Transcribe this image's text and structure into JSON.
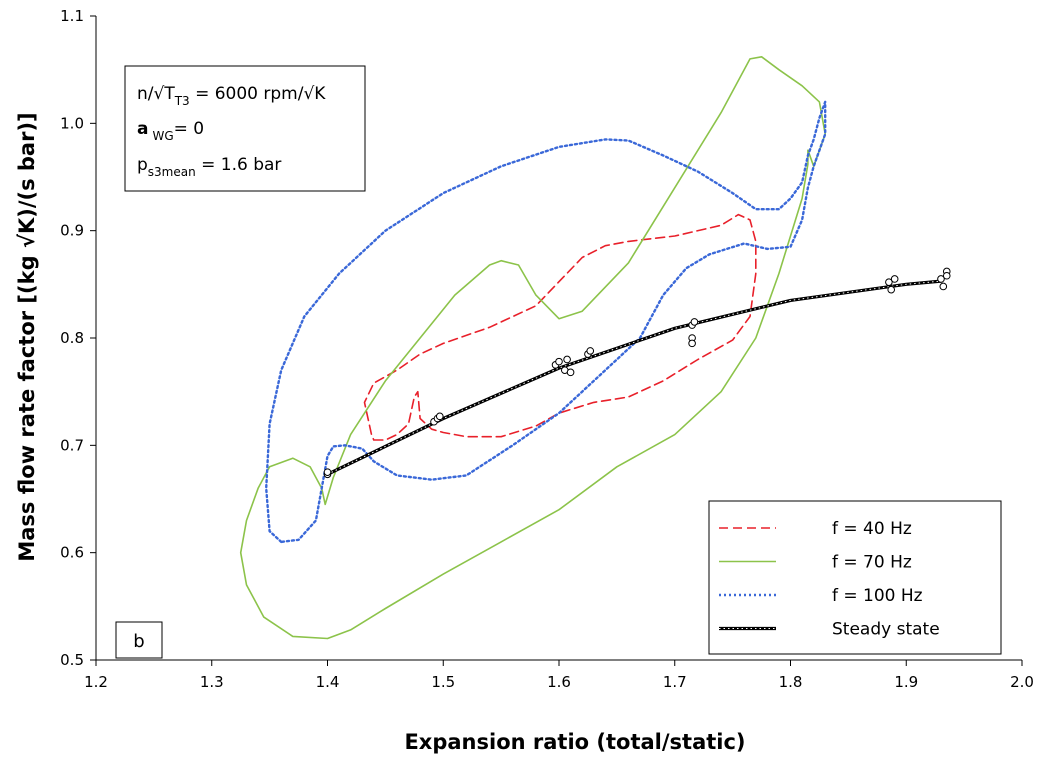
{
  "chart_data": {
    "type": "line",
    "title": "",
    "xlabel": "Expansion ratio (total/static)",
    "ylabel": "Mass flow rate factor [(kg √K)/(s bar)]",
    "xlim": [
      1.2,
      2.0
    ],
    "ylim": [
      0.5,
      1.1
    ],
    "xticks": [
      "1.2",
      "1.3",
      "1.4",
      "1.5",
      "1.6",
      "1.7",
      "1.8",
      "1.9",
      "2.0"
    ],
    "yticks": [
      "0.5",
      "0.6",
      "0.7",
      "0.8",
      "0.9",
      "1.0",
      "1.1"
    ],
    "grid": false,
    "legend_position": "bottom-right",
    "panel_label": "b",
    "annotation": {
      "line1": {
        "pre": "n/√T",
        "sub": "T3",
        "post": " = 6000 rpm/√K"
      },
      "line2": {
        "pre": "a",
        "sub": "WG",
        "post": "= 0"
      },
      "line3": {
        "pre": "p",
        "sub": "s3mean",
        "post": " = 1.6 bar"
      }
    },
    "series": [
      {
        "name": "f = 40 Hz",
        "color": "#e8202a",
        "style": "dashed",
        "points": [
          [
            1.44,
            0.705
          ],
          [
            1.45,
            0.705
          ],
          [
            1.46,
            0.71
          ],
          [
            1.47,
            0.72
          ],
          [
            1.475,
            0.745
          ],
          [
            1.478,
            0.75
          ],
          [
            1.48,
            0.725
          ],
          [
            1.49,
            0.715
          ],
          [
            1.5,
            0.712
          ],
          [
            1.52,
            0.708
          ],
          [
            1.55,
            0.708
          ],
          [
            1.58,
            0.718
          ],
          [
            1.6,
            0.73
          ],
          [
            1.63,
            0.74
          ],
          [
            1.66,
            0.745
          ],
          [
            1.69,
            0.76
          ],
          [
            1.72,
            0.78
          ],
          [
            1.75,
            0.798
          ],
          [
            1.765,
            0.82
          ],
          [
            1.77,
            0.86
          ],
          [
            1.77,
            0.89
          ],
          [
            1.765,
            0.91
          ],
          [
            1.755,
            0.915
          ],
          [
            1.74,
            0.905
          ],
          [
            1.7,
            0.895
          ],
          [
            1.66,
            0.89
          ],
          [
            1.64,
            0.886
          ],
          [
            1.62,
            0.875
          ],
          [
            1.58,
            0.83
          ],
          [
            1.54,
            0.81
          ],
          [
            1.5,
            0.795
          ],
          [
            1.48,
            0.785
          ],
          [
            1.46,
            0.77
          ],
          [
            1.44,
            0.758
          ],
          [
            1.432,
            0.74
          ],
          [
            1.438,
            0.71
          ],
          [
            1.44,
            0.705
          ]
        ]
      },
      {
        "name": "f = 70 Hz",
        "color": "#8cc34a",
        "style": "solid",
        "points": [
          [
            1.4,
            0.52
          ],
          [
            1.37,
            0.522
          ],
          [
            1.345,
            0.54
          ],
          [
            1.33,
            0.57
          ],
          [
            1.325,
            0.6
          ],
          [
            1.33,
            0.63
          ],
          [
            1.34,
            0.66
          ],
          [
            1.35,
            0.68
          ],
          [
            1.37,
            0.688
          ],
          [
            1.385,
            0.68
          ],
          [
            1.395,
            0.66
          ],
          [
            1.398,
            0.645
          ],
          [
            1.405,
            0.67
          ],
          [
            1.42,
            0.71
          ],
          [
            1.45,
            0.76
          ],
          [
            1.48,
            0.8
          ],
          [
            1.51,
            0.84
          ],
          [
            1.54,
            0.868
          ],
          [
            1.55,
            0.872
          ],
          [
            1.565,
            0.868
          ],
          [
            1.58,
            0.84
          ],
          [
            1.6,
            0.818
          ],
          [
            1.62,
            0.825
          ],
          [
            1.66,
            0.87
          ],
          [
            1.7,
            0.94
          ],
          [
            1.74,
            1.01
          ],
          [
            1.765,
            1.06
          ],
          [
            1.775,
            1.062
          ],
          [
            1.79,
            1.05
          ],
          [
            1.81,
            1.035
          ],
          [
            1.825,
            1.02
          ],
          [
            1.83,
            0.99
          ],
          [
            1.82,
            0.96
          ],
          [
            1.815,
            0.975
          ],
          [
            1.815,
            0.962
          ],
          [
            1.81,
            0.93
          ],
          [
            1.79,
            0.86
          ],
          [
            1.77,
            0.8
          ],
          [
            1.74,
            0.75
          ],
          [
            1.7,
            0.71
          ],
          [
            1.65,
            0.68
          ],
          [
            1.6,
            0.64
          ],
          [
            1.55,
            0.61
          ],
          [
            1.5,
            0.58
          ],
          [
            1.45,
            0.548
          ],
          [
            1.42,
            0.528
          ],
          [
            1.4,
            0.52
          ]
        ]
      },
      {
        "name": "f = 100 Hz",
        "color": "#3a68d8",
        "style": "dotted",
        "points": [
          [
            1.36,
            0.61
          ],
          [
            1.35,
            0.62
          ],
          [
            1.347,
            0.66
          ],
          [
            1.35,
            0.72
          ],
          [
            1.36,
            0.77
          ],
          [
            1.38,
            0.82
          ],
          [
            1.41,
            0.86
          ],
          [
            1.45,
            0.9
          ],
          [
            1.5,
            0.935
          ],
          [
            1.55,
            0.96
          ],
          [
            1.6,
            0.978
          ],
          [
            1.64,
            0.985
          ],
          [
            1.66,
            0.984
          ],
          [
            1.69,
            0.97
          ],
          [
            1.72,
            0.955
          ],
          [
            1.75,
            0.935
          ],
          [
            1.77,
            0.92
          ],
          [
            1.79,
            0.92
          ],
          [
            1.8,
            0.93
          ],
          [
            1.81,
            0.945
          ],
          [
            1.815,
            0.97
          ],
          [
            1.82,
            0.985
          ],
          [
            1.825,
            1.005
          ],
          [
            1.83,
            1.02
          ],
          [
            1.83,
            0.99
          ],
          [
            1.82,
            0.96
          ],
          [
            1.815,
            0.94
          ],
          [
            1.81,
            0.91
          ],
          [
            1.8,
            0.885
          ],
          [
            1.78,
            0.883
          ],
          [
            1.76,
            0.888
          ],
          [
            1.73,
            0.878
          ],
          [
            1.71,
            0.865
          ],
          [
            1.69,
            0.84
          ],
          [
            1.67,
            0.8
          ],
          [
            1.64,
            0.77
          ],
          [
            1.6,
            0.73
          ],
          [
            1.56,
            0.7
          ],
          [
            1.52,
            0.672
          ],
          [
            1.49,
            0.668
          ],
          [
            1.46,
            0.672
          ],
          [
            1.44,
            0.685
          ],
          [
            1.43,
            0.697
          ],
          [
            1.415,
            0.7
          ],
          [
            1.405,
            0.699
          ],
          [
            1.4,
            0.69
          ],
          [
            1.395,
            0.66
          ],
          [
            1.39,
            0.63
          ],
          [
            1.375,
            0.612
          ],
          [
            1.36,
            0.61
          ]
        ]
      },
      {
        "name": "Steady state",
        "color": "#000000",
        "style": "solid-markers",
        "points": [
          [
            1.4,
            0.673
          ],
          [
            1.5,
            0.725
          ],
          [
            1.6,
            0.772
          ],
          [
            1.7,
            0.809
          ],
          [
            1.8,
            0.835
          ],
          [
            1.9,
            0.85
          ],
          [
            1.93,
            0.853
          ]
        ]
      }
    ],
    "steady_markers": [
      [
        1.4,
        0.673
      ],
      [
        1.4,
        0.675
      ],
      [
        1.492,
        0.722
      ],
      [
        1.495,
        0.725
      ],
      [
        1.497,
        0.727
      ],
      [
        1.597,
        0.775
      ],
      [
        1.6,
        0.778
      ],
      [
        1.605,
        0.77
      ],
      [
        1.607,
        0.78
      ],
      [
        1.61,
        0.768
      ],
      [
        1.625,
        0.785
      ],
      [
        1.627,
        0.788
      ],
      [
        1.715,
        0.812
      ],
      [
        1.715,
        0.8
      ],
      [
        1.715,
        0.795
      ],
      [
        1.717,
        0.815
      ],
      [
        1.885,
        0.852
      ],
      [
        1.887,
        0.845
      ],
      [
        1.89,
        0.855
      ],
      [
        1.93,
        0.855
      ],
      [
        1.932,
        0.848
      ],
      [
        1.935,
        0.862
      ],
      [
        1.935,
        0.858
      ]
    ]
  }
}
